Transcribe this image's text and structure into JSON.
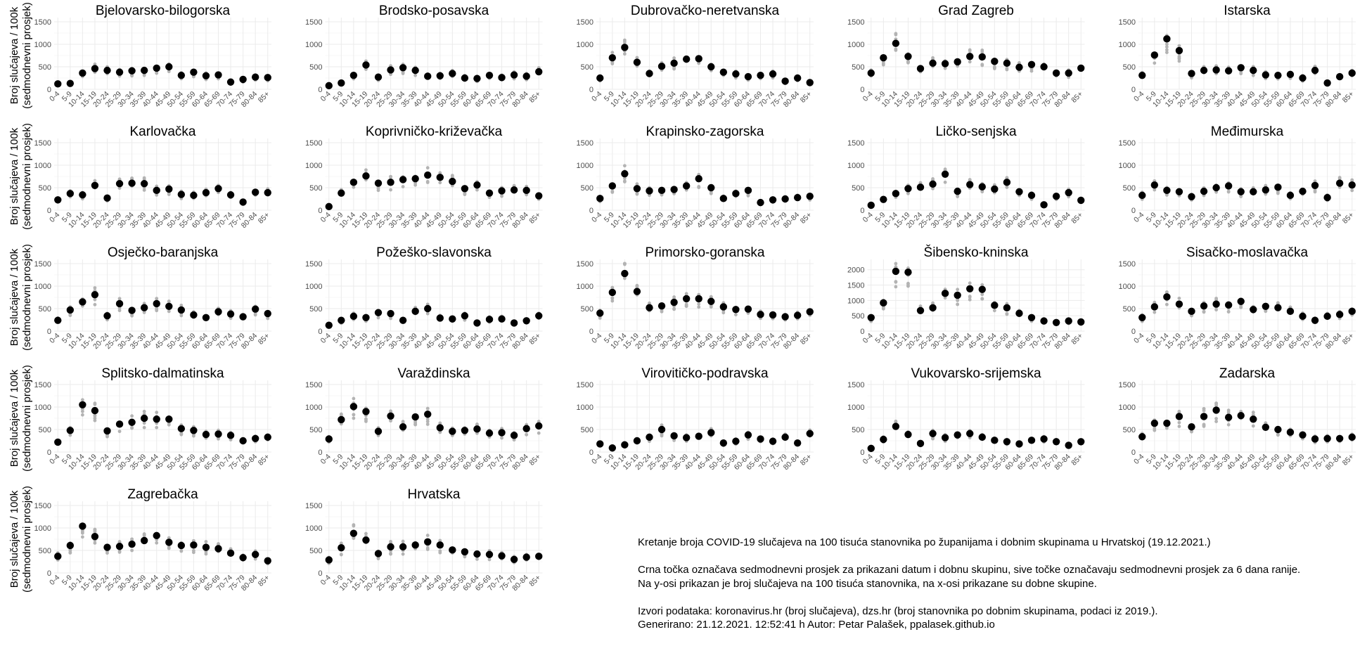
{
  "chart_data": {
    "type": "scatter",
    "y_axis_label_line1": "Broj slučajeva / 100k",
    "y_axis_label_line2": "(sedmodnevni prosjek)",
    "categories": [
      "0-4",
      "5-9",
      "10-14",
      "15-19",
      "20-24",
      "25-29",
      "30-34",
      "35-39",
      "40-44",
      "45-49",
      "50-54",
      "55-59",
      "60-64",
      "65-69",
      "70-74",
      "75-79",
      "80-84",
      "85+"
    ],
    "series": [
      {
        "name": "Bjelovarsko-bilogorska",
        "ylim": [
          0,
          1500
        ],
        "yticks": [
          0,
          500,
          1000,
          1500
        ],
        "values": [
          120,
          130,
          360,
          460,
          420,
          380,
          410,
          420,
          470,
          500,
          310,
          380,
          300,
          320,
          160,
          220,
          270,
          260
        ]
      },
      {
        "name": "Brodsko-posavska",
        "ylim": [
          0,
          1500
        ],
        "yticks": [
          0,
          500,
          1000,
          1500
        ],
        "values": [
          80,
          140,
          310,
          540,
          270,
          430,
          480,
          420,
          290,
          300,
          350,
          250,
          240,
          310,
          260,
          320,
          290,
          390
        ]
      },
      {
        "name": "Dubrovačko-neretvanska",
        "ylim": [
          0,
          1500
        ],
        "yticks": [
          0,
          500,
          1000,
          1500
        ],
        "values": [
          250,
          700,
          930,
          600,
          350,
          510,
          580,
          670,
          680,
          500,
          380,
          340,
          280,
          310,
          340,
          180,
          250,
          150
        ]
      },
      {
        "name": "Grad Zagreb",
        "ylim": [
          0,
          1500
        ],
        "yticks": [
          0,
          500,
          1000,
          1500
        ],
        "values": [
          360,
          700,
          1020,
          730,
          460,
          580,
          570,
          610,
          730,
          720,
          620,
          580,
          490,
          550,
          500,
          360,
          360,
          470
        ]
      },
      {
        "name": "Istarska",
        "ylim": [
          0,
          1500
        ],
        "yticks": [
          0,
          500,
          1000,
          1500
        ],
        "values": [
          310,
          760,
          1120,
          860,
          350,
          420,
          430,
          410,
          480,
          420,
          320,
          310,
          330,
          250,
          420,
          140,
          280,
          360
        ]
      },
      {
        "name": "Karlovačka",
        "ylim": [
          0,
          1500
        ],
        "yticks": [
          0,
          500,
          1000,
          1500
        ],
        "values": [
          230,
          370,
          340,
          550,
          270,
          590,
          600,
          590,
          440,
          470,
          350,
          330,
          390,
          480,
          340,
          180,
          400,
          390
        ]
      },
      {
        "name": "Koprivničko-križevačka",
        "ylim": [
          0,
          1500
        ],
        "yticks": [
          0,
          500,
          1000,
          1500
        ],
        "values": [
          80,
          380,
          620,
          760,
          600,
          620,
          680,
          700,
          780,
          730,
          640,
          480,
          560,
          380,
          430,
          450,
          440,
          320
        ]
      },
      {
        "name": "Krapinsko-zagorska",
        "ylim": [
          0,
          1500
        ],
        "yticks": [
          0,
          500,
          1000,
          1500
        ],
        "values": [
          260,
          540,
          810,
          480,
          430,
          440,
          460,
          540,
          700,
          500,
          260,
          370,
          440,
          170,
          230,
          250,
          280,
          310
        ]
      },
      {
        "name": "Ličko-senjska",
        "ylim": [
          0,
          1500
        ],
        "yticks": [
          0,
          500,
          1000,
          1500
        ],
        "values": [
          110,
          240,
          370,
          480,
          510,
          580,
          800,
          420,
          570,
          520,
          470,
          620,
          410,
          330,
          120,
          310,
          390,
          220
        ]
      },
      {
        "name": "Međimurska",
        "ylim": [
          0,
          1500
        ],
        "yticks": [
          0,
          500,
          1000,
          1500
        ],
        "values": [
          330,
          560,
          440,
          410,
          300,
          420,
          500,
          540,
          410,
          410,
          450,
          510,
          330,
          420,
          550,
          280,
          600,
          560
        ]
      },
      {
        "name": "Osječko-baranjska",
        "ylim": [
          0,
          1500
        ],
        "yticks": [
          0,
          500,
          1000,
          1500
        ],
        "values": [
          240,
          470,
          650,
          810,
          340,
          610,
          460,
          520,
          610,
          550,
          470,
          360,
          300,
          430,
          380,
          320,
          490,
          390
        ]
      },
      {
        "name": "Požeško-slavonska",
        "ylim": [
          0,
          1500
        ],
        "yticks": [
          0,
          500,
          1000,
          1500
        ],
        "values": [
          130,
          240,
          330,
          300,
          410,
          390,
          240,
          440,
          500,
          290,
          270,
          340,
          180,
          260,
          270,
          180,
          230,
          340
        ]
      },
      {
        "name": "Primorsko-goranska",
        "ylim": [
          0,
          1500
        ],
        "yticks": [
          0,
          500,
          1000,
          1500
        ],
        "values": [
          400,
          860,
          1280,
          880,
          520,
          560,
          640,
          720,
          720,
          660,
          540,
          480,
          490,
          370,
          360,
          320,
          350,
          430
        ]
      },
      {
        "name": "Šibensko-kninska",
        "ylim": [
          0,
          2200
        ],
        "yticks": [
          0,
          500,
          1000,
          1500,
          2000
        ],
        "values": [
          440,
          920,
          1950,
          1920,
          670,
          760,
          1230,
          1170,
          1380,
          1360,
          840,
          760,
          580,
          440,
          330,
          280,
          330,
          300
        ]
      },
      {
        "name": "Sisačko-moslavačka",
        "ylim": [
          0,
          1500
        ],
        "yticks": [
          0,
          500,
          1000,
          1500
        ],
        "values": [
          300,
          540,
          760,
          600,
          440,
          560,
          600,
          580,
          660,
          480,
          550,
          520,
          440,
          330,
          240,
          330,
          370,
          440
        ]
      },
      {
        "name": "Splitsko-dalmatinska",
        "ylim": [
          0,
          1500
        ],
        "yticks": [
          0,
          500,
          1000,
          1500
        ],
        "values": [
          220,
          480,
          1050,
          920,
          470,
          620,
          660,
          750,
          730,
          730,
          520,
          480,
          390,
          400,
          370,
          250,
          300,
          330
        ]
      },
      {
        "name": "Varaždinska",
        "ylim": [
          0,
          1500
        ],
        "yticks": [
          0,
          500,
          1000,
          1500
        ],
        "values": [
          290,
          720,
          1010,
          900,
          460,
          800,
          560,
          780,
          840,
          540,
          460,
          480,
          510,
          420,
          430,
          370,
          520,
          580
        ]
      },
      {
        "name": "Virovitičko-podravska",
        "ylim": [
          0,
          1500
        ],
        "yticks": [
          0,
          500,
          1000,
          1500
        ],
        "values": [
          180,
          90,
          160,
          250,
          330,
          500,
          360,
          320,
          350,
          430,
          200,
          240,
          380,
          290,
          240,
          330,
          200,
          410
        ]
      },
      {
        "name": "Vukovarsko-srijemska",
        "ylim": [
          0,
          1500
        ],
        "yticks": [
          0,
          500,
          1000,
          1500
        ],
        "values": [
          80,
          280,
          570,
          390,
          190,
          410,
          320,
          380,
          410,
          330,
          260,
          230,
          180,
          260,
          290,
          230,
          150,
          230
        ]
      },
      {
        "name": "Zadarska",
        "ylim": [
          0,
          1500
        ],
        "yticks": [
          0,
          500,
          1000,
          1500
        ],
        "values": [
          340,
          640,
          640,
          790,
          560,
          790,
          930,
          770,
          810,
          730,
          550,
          500,
          440,
          380,
          290,
          300,
          300,
          330
        ]
      },
      {
        "name": "Zagrebačka",
        "ylim": [
          0,
          1500
        ],
        "yticks": [
          0,
          500,
          1000,
          1500
        ],
        "values": [
          370,
          610,
          1040,
          810,
          570,
          590,
          640,
          720,
          830,
          680,
          610,
          620,
          570,
          540,
          440,
          340,
          410,
          270
        ]
      },
      {
        "name": "Hrvatska",
        "ylim": [
          0,
          1500
        ],
        "yticks": [
          0,
          500,
          1000,
          1500
        ],
        "values": [
          290,
          560,
          880,
          730,
          430,
          580,
          580,
          620,
          690,
          620,
          510,
          470,
          420,
          410,
          380,
          300,
          350,
          370
        ]
      }
    ]
  },
  "caption": {
    "line1": "Kretanje broja COVID-19 slučajeva na 100 tisuća stanovnika po županijama i dobnim skupinama u Hrvatskoj (19.12.2021.)",
    "line2": "Crna točka označava sedmodnevni prosjek za prikazani datum i dobnu skupinu, sive točke označavaju sedmodnevni prosjek za 6 dana ranije.",
    "line3": "Na y-osi prikazan je broj slučajeva na 100 tisuća stanovnika, na x-osi prikazane su dobne skupine.",
    "line4": "Izvori podataka: koronavirus.hr (broj slučajeva), dzs.hr (broj stanovnika po dobnim skupinama, podaci iz 2019.).",
    "line5": "Generirano: 21.12.2021. 12:52:41 h Autor: Petar Palašek, ppalasek.github.io"
  },
  "colors": {
    "current_point": "#000000",
    "previous_points": "#b3b3b3",
    "gridline": "#ebebeb"
  }
}
